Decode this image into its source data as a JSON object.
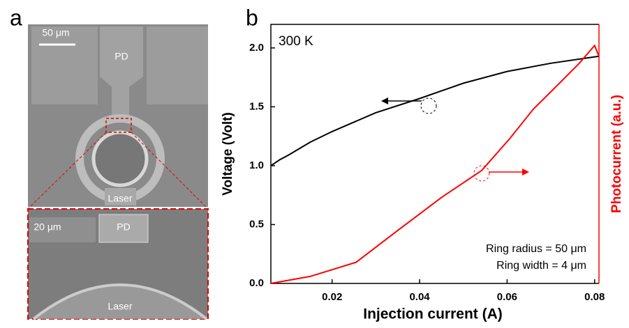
{
  "panel_labels": [
    "a",
    "b"
  ],
  "sem": {
    "scale_bar": "50 μm",
    "pd": "PD",
    "laser": "Laser",
    "inset_scale_bar": "20 μm",
    "inset_pd": "PD",
    "inset_laser": "Laser"
  },
  "chart_data": {
    "type": "line",
    "x_label": "Injection current (A)",
    "y_label": "Voltage (Volt)",
    "y2_label": "Photocurrent (a.u.)",
    "annotations": [
      "300 K",
      "Ring radius = 50 μm",
      "Ring width = 4 μm"
    ],
    "xlim": [
      0.006,
      0.081
    ],
    "xticks": [
      0.02,
      0.04,
      0.06,
      0.08
    ],
    "ylim": [
      0,
      2.2
    ],
    "yticks": [
      {
        "value": 0,
        "label": "0.0"
      },
      0.5,
      {
        "value": 1,
        "label": "1.0"
      },
      1.5,
      {
        "value": 2,
        "label": "2.0"
      }
    ],
    "y2lim": [
      0,
      2.2
    ],
    "series": [
      {
        "name": "Voltage",
        "color": "#000000",
        "x": [
          0.006,
          0.008,
          0.01,
          0.015,
          0.02,
          0.03,
          0.04,
          0.05,
          0.06,
          0.07,
          0.081
        ],
        "values": [
          1.0,
          1.05,
          1.09,
          1.2,
          1.29,
          1.45,
          1.57,
          1.7,
          1.8,
          1.87,
          1.93
        ]
      },
      {
        "name": "Photocurrent",
        "color": "#ff0000",
        "axis": "y2",
        "x": [
          0.006,
          0.015,
          0.0255,
          0.035,
          0.045,
          0.0542,
          0.0606,
          0.066,
          0.0717,
          0.0765,
          0.08,
          0.081
        ],
        "values": [
          0,
          0.06,
          0.18,
          0.45,
          0.73,
          0.96,
          1.23,
          1.48,
          1.69,
          1.87,
          2.02,
          1.93
        ]
      }
    ]
  }
}
